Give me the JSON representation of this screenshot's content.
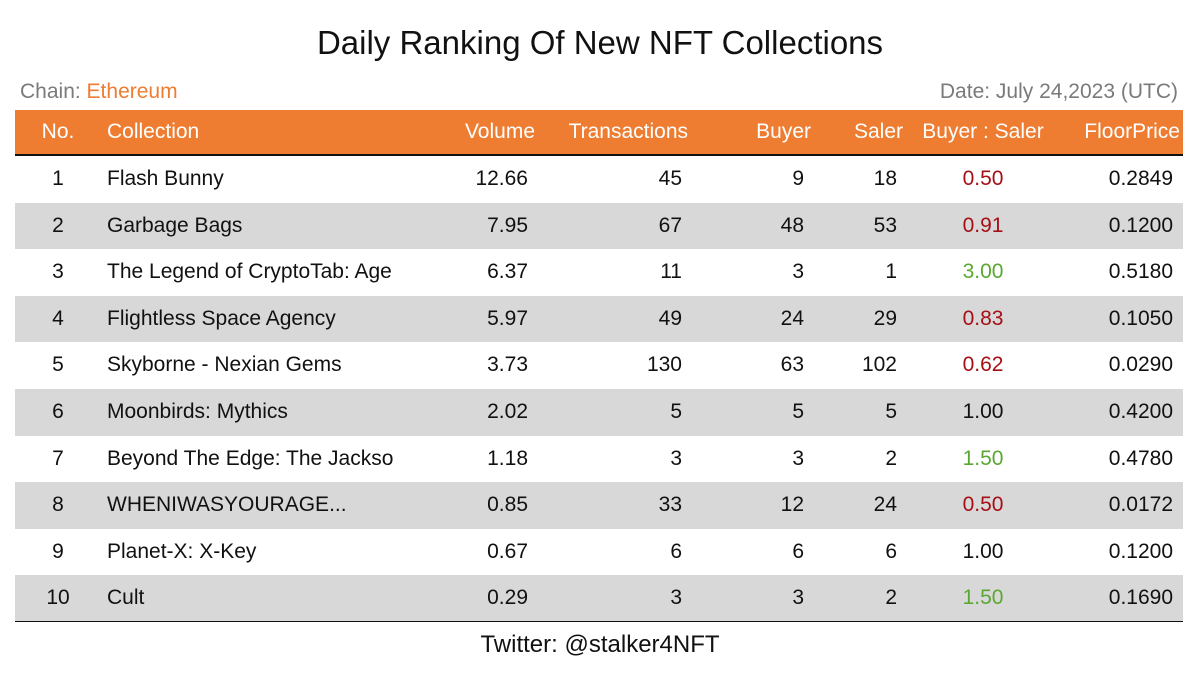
{
  "title": "Daily Ranking Of New NFT Collections",
  "chain_label": "Chain: ",
  "chain_value": "Ethereum",
  "date": "Date: July 24,2023 (UTC)",
  "footer": "Twitter: @stalker4NFT",
  "colors": {
    "header_bg": "#ee7d31",
    "stripe": "#d8d8d8",
    "ratio_below_one": "#a50f15",
    "ratio_above_one": "#5aa832"
  },
  "chart_data": {
    "type": "table",
    "columns": [
      "No.",
      "Collection",
      "Volume",
      "Transactions",
      "Buyer",
      "Saler",
      "Buyer : Saler",
      "FloorPrice"
    ],
    "rows": [
      {
        "no": "1",
        "collection": "Flash Bunny",
        "volume": "12.66",
        "transactions": "45",
        "buyer": "9",
        "saler": "18",
        "ratio": "0.50",
        "floor": "0.2849"
      },
      {
        "no": "2",
        "collection": "Garbage Bags",
        "volume": "7.95",
        "transactions": "67",
        "buyer": "48",
        "saler": "53",
        "ratio": "0.91",
        "floor": "0.1200"
      },
      {
        "no": "3",
        "collection": "The Legend of CryptoTab: Age",
        "volume": "6.37",
        "transactions": "11",
        "buyer": "3",
        "saler": "1",
        "ratio": "3.00",
        "floor": "0.5180"
      },
      {
        "no": "4",
        "collection": "Flightless Space Agency",
        "volume": "5.97",
        "transactions": "49",
        "buyer": "24",
        "saler": "29",
        "ratio": "0.83",
        "floor": "0.1050"
      },
      {
        "no": "5",
        "collection": "Skyborne - Nexian Gems",
        "volume": "3.73",
        "transactions": "130",
        "buyer": "63",
        "saler": "102",
        "ratio": "0.62",
        "floor": "0.0290"
      },
      {
        "no": "6",
        "collection": "Moonbirds: Mythics",
        "volume": "2.02",
        "transactions": "5",
        "buyer": "5",
        "saler": "5",
        "ratio": "1.00",
        "floor": "0.4200"
      },
      {
        "no": "7",
        "collection": "Beyond The Edge: The Jackso",
        "volume": "1.18",
        "transactions": "3",
        "buyer": "3",
        "saler": "2",
        "ratio": "1.50",
        "floor": "0.4780"
      },
      {
        "no": "8",
        "collection": "WHENIWASYOURAGE...",
        "volume": "0.85",
        "transactions": "33",
        "buyer": "12",
        "saler": "24",
        "ratio": "0.50",
        "floor": "0.0172"
      },
      {
        "no": "9",
        "collection": "Planet-X: X-Key",
        "volume": "0.67",
        "transactions": "6",
        "buyer": "6",
        "saler": "6",
        "ratio": "1.00",
        "floor": "0.1200"
      },
      {
        "no": "10",
        "collection": "Cult",
        "volume": "0.29",
        "transactions": "3",
        "buyer": "3",
        "saler": "2",
        "ratio": "1.50",
        "floor": "0.1690"
      }
    ]
  }
}
